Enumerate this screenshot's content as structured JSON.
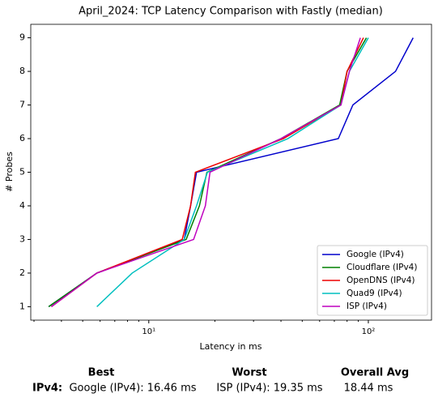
{
  "chart_data": {
    "type": "line",
    "title": "April_2024: TCP Latency Comparison with Fastly (median)",
    "xlabel": "Latency in ms",
    "ylabel": "# Probes",
    "xscale": "log",
    "xlim": [
      2.9,
      194
    ],
    "ylim": [
      0.6,
      9.4
    ],
    "xticks": [
      {
        "value": 10,
        "label": "10¹"
      },
      {
        "value": 100,
        "label": "10²"
      }
    ],
    "xminor_ticks": [
      3,
      4,
      5,
      6,
      7,
      8,
      9,
      20,
      30,
      40,
      50,
      60,
      70,
      80,
      90
    ],
    "yticks": [
      1,
      2,
      3,
      4,
      5,
      6,
      7,
      8,
      9
    ],
    "legend": "lower right",
    "series": [
      {
        "name": "Google (IPv4)",
        "color": "#0000cc",
        "x": [
          3.5,
          5.8,
          14.5,
          15.5,
          16.5,
          73,
          85,
          133,
          160
        ],
        "values": [
          1,
          2,
          3,
          4,
          5,
          6,
          7,
          8,
          9
        ]
      },
      {
        "name": "Cloudflare (IPv4)",
        "color": "#008000",
        "x": [
          3.5,
          5.8,
          14.8,
          17,
          18.4,
          40,
          74,
          80,
          98
        ],
        "values": [
          1,
          2,
          3,
          4,
          5,
          6,
          7,
          8,
          9
        ]
      },
      {
        "name": "OpenDNS (IPv4)",
        "color": "#ee0000",
        "x": [
          3.6,
          5.8,
          14.2,
          15.5,
          16.3,
          41,
          75,
          80,
          95
        ],
        "values": [
          1,
          2,
          3,
          4,
          5,
          6,
          7,
          8,
          9
        ]
      },
      {
        "name": "Quad9 (IPv4)",
        "color": "#00bfbf",
        "x": [
          5.8,
          8.4,
          14.5,
          16.5,
          18.5,
          43,
          75,
          82,
          100
        ],
        "values": [
          1,
          2,
          3,
          4,
          5,
          6,
          7,
          8,
          9
        ]
      },
      {
        "name": "ISP (IPv4)",
        "color": "#bf00bf",
        "x": [
          3.6,
          5.8,
          16,
          18.1,
          19,
          40,
          75,
          82,
          92
        ],
        "values": [
          1,
          2,
          3,
          4,
          5,
          6,
          7,
          8,
          9
        ]
      }
    ]
  },
  "summary": {
    "headers": [
      "Best",
      "Worst",
      "Overall Avg"
    ],
    "row_label": "IPv4:",
    "cells": [
      "Google (IPv4): 16.46 ms",
      "ISP (IPv4): 19.35 ms",
      "18.44 ms"
    ]
  }
}
